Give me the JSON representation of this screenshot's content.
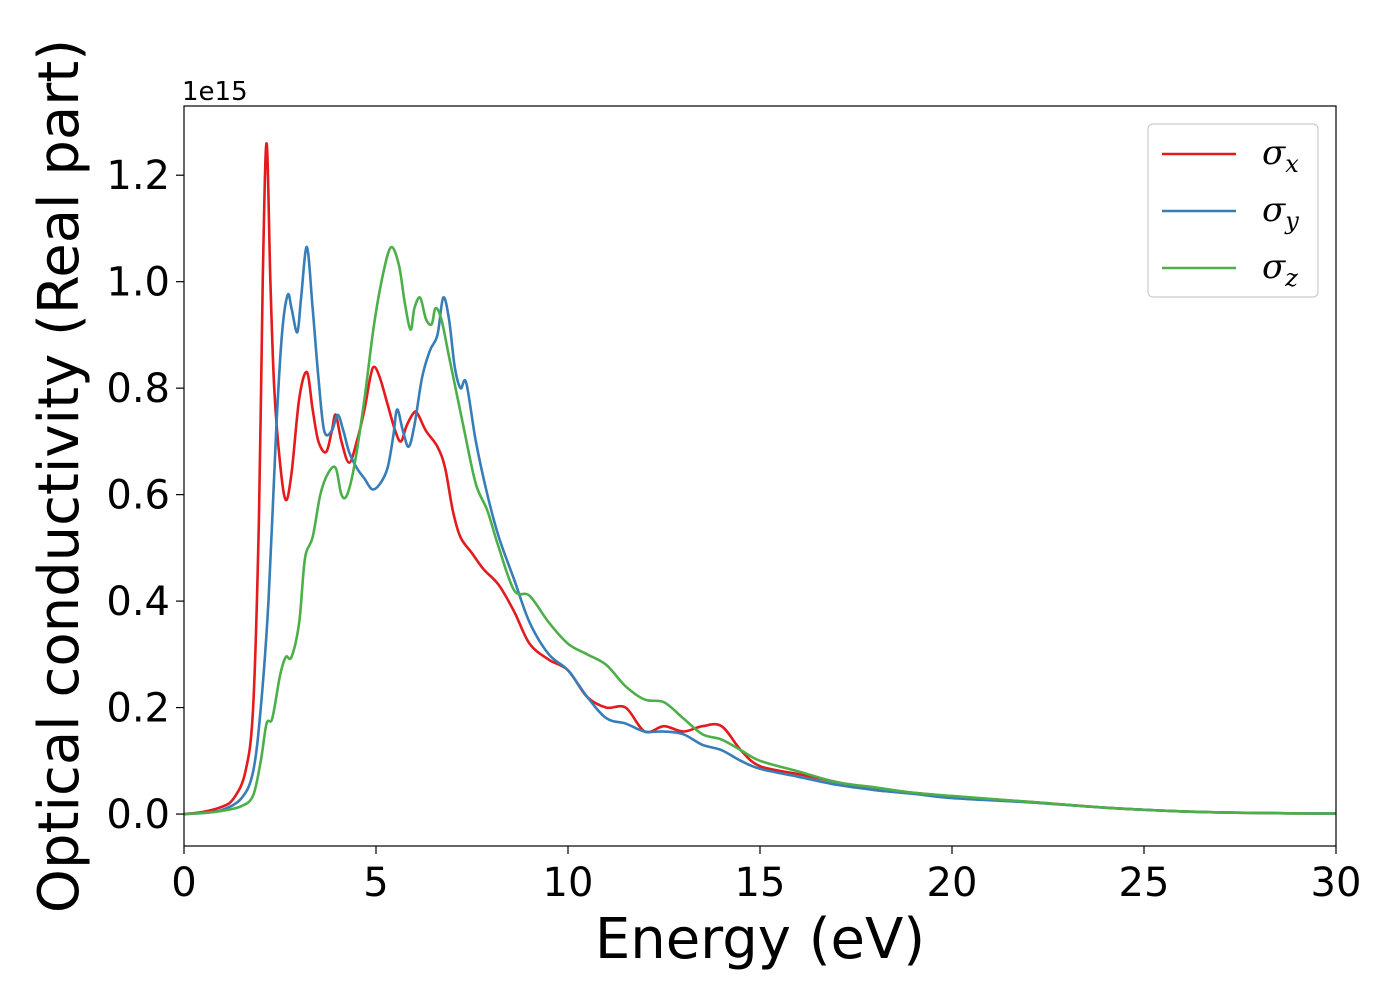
{
  "chart_data": {
    "type": "line",
    "title": "",
    "xlabel": "Energy (eV)",
    "ylabel": "Optical conductivity (Real part)",
    "y_offset_label": "1e15",
    "xlim": [
      0,
      30
    ],
    "ylim": [
      -0.06,
      1.33
    ],
    "x_ticks": [
      0,
      5,
      10,
      15,
      20,
      25,
      30
    ],
    "x_tick_labels": [
      "0",
      "5",
      "10",
      "15",
      "20",
      "25",
      "30"
    ],
    "y_ticks": [
      0.0,
      0.2,
      0.4,
      0.6,
      0.8,
      1.0,
      1.2
    ],
    "y_tick_labels": [
      "0.0",
      "0.2",
      "0.4",
      "0.6",
      "0.8",
      "1.0",
      "1.2"
    ],
    "grid": false,
    "legend_position": "top-right",
    "series": [
      {
        "name": "σx",
        "legend_symbol": "σ",
        "legend_subscript": "x",
        "color": "#e41a1c",
        "x": [
          0,
          0.5,
          1.0,
          1.3,
          1.6,
          1.8,
          1.95,
          2.05,
          2.15,
          2.25,
          2.35,
          2.5,
          2.65,
          2.8,
          3.0,
          3.2,
          3.35,
          3.5,
          3.7,
          3.85,
          3.95,
          4.1,
          4.3,
          4.5,
          4.7,
          4.85,
          4.95,
          5.1,
          5.3,
          5.5,
          5.65,
          5.8,
          6.0,
          6.1,
          6.3,
          6.6,
          6.8,
          7.0,
          7.2,
          7.5,
          7.8,
          8.2,
          8.6,
          9.0,
          9.5,
          10.0,
          10.5,
          11.0,
          11.5,
          12.0,
          12.5,
          13.0,
          13.5,
          14.0,
          14.5,
          15.0,
          16.0,
          17.0,
          18.0,
          19.0,
          20.0,
          22.0,
          24.0,
          26.0,
          28.0,
          30.0
        ],
        "y": [
          0.0,
          0.004,
          0.014,
          0.03,
          0.08,
          0.2,
          0.55,
          1.0,
          1.26,
          1.0,
          0.8,
          0.66,
          0.59,
          0.64,
          0.78,
          0.83,
          0.76,
          0.7,
          0.68,
          0.72,
          0.75,
          0.7,
          0.66,
          0.7,
          0.76,
          0.82,
          0.84,
          0.82,
          0.77,
          0.72,
          0.7,
          0.73,
          0.755,
          0.75,
          0.72,
          0.69,
          0.65,
          0.57,
          0.52,
          0.49,
          0.46,
          0.43,
          0.38,
          0.32,
          0.29,
          0.27,
          0.22,
          0.2,
          0.2,
          0.155,
          0.165,
          0.155,
          0.165,
          0.165,
          0.12,
          0.09,
          0.075,
          0.06,
          0.045,
          0.04,
          0.033,
          0.023,
          0.012,
          0.005,
          0.002,
          0.001
        ]
      },
      {
        "name": "σy",
        "legend_symbol": "σ",
        "legend_subscript": "y",
        "color": "#377eb8",
        "x": [
          0,
          0.5,
          1.0,
          1.5,
          1.8,
          2.0,
          2.2,
          2.4,
          2.55,
          2.7,
          2.8,
          2.95,
          3.05,
          3.2,
          3.35,
          3.5,
          3.65,
          3.85,
          4.0,
          4.15,
          4.3,
          4.5,
          4.7,
          4.9,
          5.1,
          5.3,
          5.45,
          5.55,
          5.7,
          5.85,
          6.0,
          6.2,
          6.4,
          6.6,
          6.75,
          6.9,
          7.05,
          7.2,
          7.35,
          7.6,
          7.9,
          8.2,
          8.6,
          9.0,
          9.5,
          10.0,
          10.5,
          11.0,
          11.5,
          12.0,
          12.5,
          13.0,
          13.5,
          14.0,
          14.5,
          15.0,
          16.0,
          17.0,
          18.0,
          19.0,
          20.0,
          22.0,
          24.0,
          26.0,
          28.0,
          30.0
        ],
        "y": [
          0.0,
          0.002,
          0.008,
          0.03,
          0.08,
          0.2,
          0.4,
          0.72,
          0.9,
          0.975,
          0.95,
          0.905,
          0.97,
          1.065,
          0.95,
          0.82,
          0.72,
          0.72,
          0.75,
          0.72,
          0.68,
          0.65,
          0.63,
          0.61,
          0.62,
          0.65,
          0.71,
          0.76,
          0.72,
          0.69,
          0.73,
          0.82,
          0.87,
          0.9,
          0.97,
          0.93,
          0.84,
          0.8,
          0.81,
          0.7,
          0.6,
          0.52,
          0.44,
          0.36,
          0.3,
          0.27,
          0.22,
          0.18,
          0.17,
          0.155,
          0.155,
          0.15,
          0.13,
          0.12,
          0.1,
          0.085,
          0.07,
          0.055,
          0.045,
          0.038,
          0.03,
          0.022,
          0.012,
          0.005,
          0.002,
          0.001
        ]
      },
      {
        "name": "σz",
        "legend_symbol": "σ",
        "legend_subscript": "z",
        "color": "#4daf4a",
        "x": [
          0,
          0.5,
          1.0,
          1.5,
          1.8,
          2.0,
          2.15,
          2.3,
          2.5,
          2.65,
          2.8,
          3.0,
          3.15,
          3.35,
          3.55,
          3.75,
          3.95,
          4.1,
          4.25,
          4.45,
          4.7,
          4.95,
          5.2,
          5.4,
          5.6,
          5.75,
          5.9,
          6.0,
          6.15,
          6.3,
          6.45,
          6.55,
          6.7,
          6.9,
          7.1,
          7.3,
          7.6,
          7.9,
          8.2,
          8.6,
          9.0,
          9.5,
          10.0,
          10.5,
          11.0,
          11.5,
          12.0,
          12.5,
          13.0,
          13.5,
          14.0,
          14.5,
          15.0,
          16.0,
          17.0,
          18.0,
          19.0,
          20.0,
          22.0,
          24.0,
          26.0,
          28.0,
          30.0
        ],
        "y": [
          0.0,
          0.002,
          0.006,
          0.015,
          0.035,
          0.1,
          0.17,
          0.18,
          0.26,
          0.295,
          0.295,
          0.36,
          0.48,
          0.52,
          0.6,
          0.64,
          0.65,
          0.6,
          0.6,
          0.66,
          0.78,
          0.92,
          1.02,
          1.065,
          1.03,
          0.96,
          0.91,
          0.95,
          0.97,
          0.93,
          0.92,
          0.95,
          0.93,
          0.86,
          0.79,
          0.72,
          0.62,
          0.57,
          0.5,
          0.42,
          0.41,
          0.36,
          0.32,
          0.3,
          0.28,
          0.24,
          0.215,
          0.21,
          0.18,
          0.15,
          0.14,
          0.12,
          0.1,
          0.08,
          0.06,
          0.05,
          0.04,
          0.034,
          0.023,
          0.012,
          0.005,
          0.002,
          0.001
        ]
      }
    ]
  }
}
